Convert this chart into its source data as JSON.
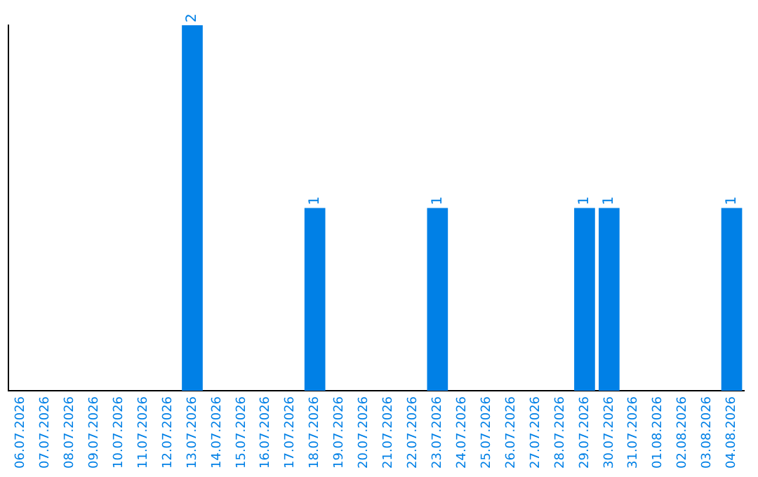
{
  "chart_data": {
    "type": "bar",
    "categories": [
      "06.07.2026",
      "07.07.2026",
      "08.07.2026",
      "09.07.2026",
      "10.07.2026",
      "11.07.2026",
      "12.07.2026",
      "13.07.2026",
      "14.07.2026",
      "15.07.2026",
      "16.07.2026",
      "17.07.2026",
      "18.07.2026",
      "19.07.2026",
      "20.07.2026",
      "21.07.2026",
      "22.07.2026",
      "23.07.2026",
      "24.07.2026",
      "25.07.2026",
      "26.07.2026",
      "27.07.2026",
      "28.07.2026",
      "29.07.2026",
      "30.07.2026",
      "31.07.2026",
      "01.08.2026",
      "02.08.2026",
      "03.08.2026",
      "04.08.2026"
    ],
    "values": [
      0,
      0,
      0,
      0,
      0,
      0,
      0,
      2,
      0,
      0,
      0,
      0,
      1,
      0,
      0,
      0,
      0,
      1,
      0,
      0,
      0,
      0,
      0,
      1,
      1,
      0,
      0,
      0,
      0,
      1
    ],
    "value_labels": [
      null,
      null,
      null,
      null,
      null,
      null,
      null,
      "2",
      null,
      null,
      null,
      null,
      "1",
      null,
      null,
      null,
      null,
      "1",
      null,
      null,
      null,
      null,
      null,
      "1",
      "1",
      null,
      null,
      null,
      null,
      "1"
    ],
    "color": "#0080e6",
    "tick_labels": "x",
    "grid": false,
    "legend": false
  }
}
